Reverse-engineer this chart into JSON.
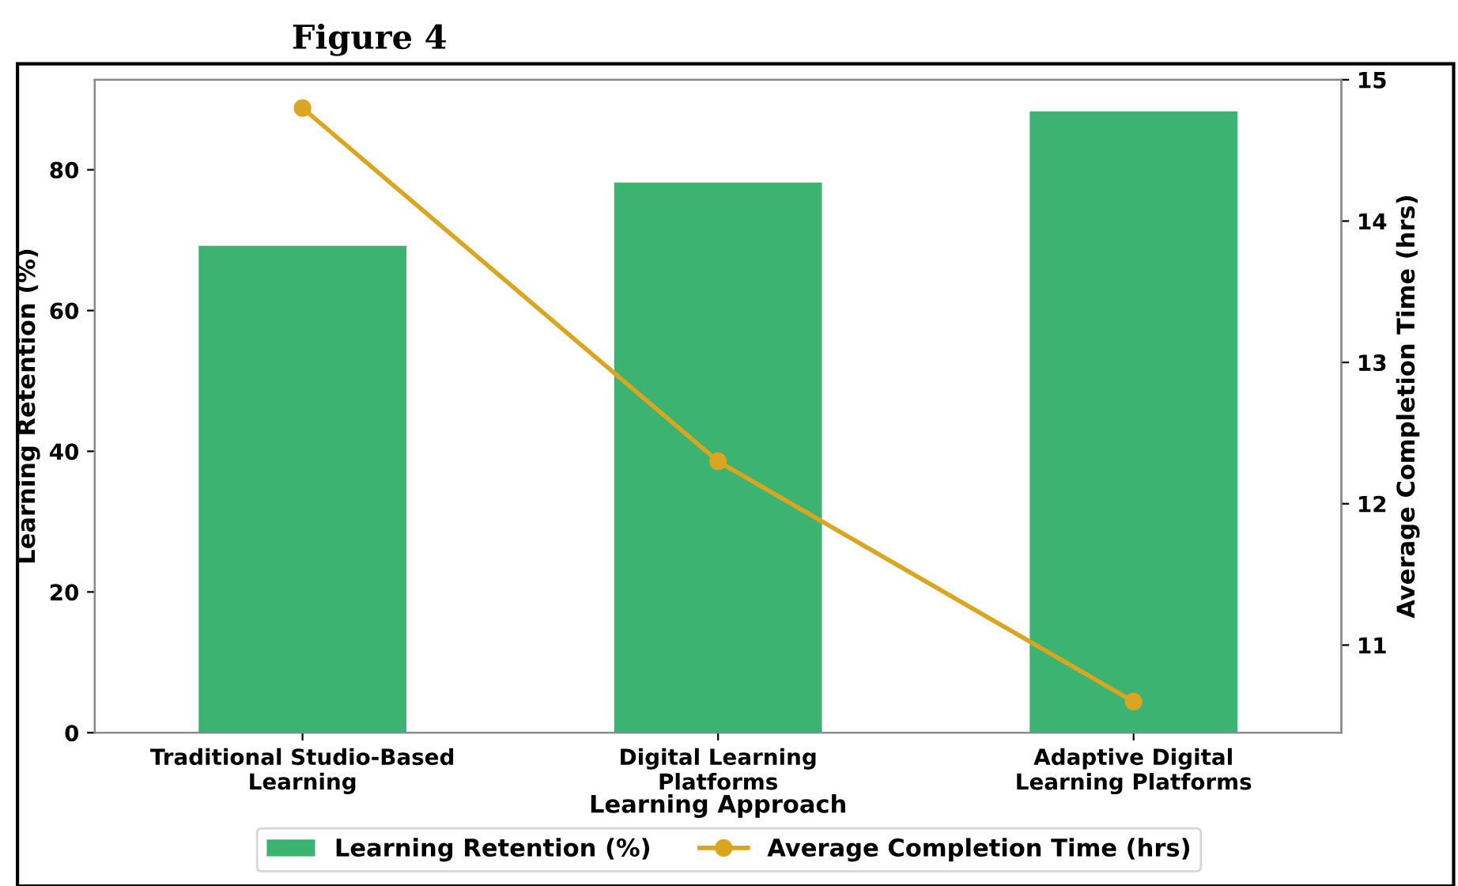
{
  "chart_data": {
    "type": "bar",
    "title": "Figure 4",
    "categories": [
      "Traditional Studio-Based\nLearning",
      "Digital Learning\nPlatforms",
      "Adaptive Digital\nLearning Platforms"
    ],
    "xlabel": "Learning Approach",
    "ylabel": "Learning Retention (%)",
    "y2label": "Average Completion Time (hrs)",
    "series": [
      {
        "name": "Learning Retention (%)",
        "color": "#3cb371",
        "values": [
          69.2,
          78.2,
          88.3
        ]
      },
      {
        "name": "Average Completion Time (hrs)",
        "type": "line",
        "axis": "y2",
        "color": "#daa520",
        "values": [
          14.8,
          12.3,
          10.6
        ]
      }
    ],
    "ylim": [
      0,
      92.8
    ],
    "yticks": [
      0,
      20,
      40,
      60,
      80
    ],
    "y2lim": [
      10.38,
      15
    ],
    "y2ticks": [
      11,
      12,
      13,
      14,
      15
    ],
    "marker": "circle",
    "line_style": "solid",
    "grid": false,
    "legend": "bottom"
  }
}
